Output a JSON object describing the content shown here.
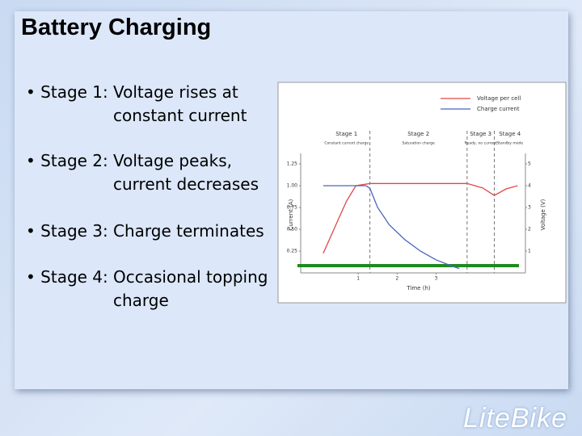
{
  "slide": {
    "title": "Battery Charging",
    "bullets": [
      {
        "label": "• Stage 1:",
        "text": [
          "Voltage rises at",
          "constant current"
        ]
      },
      {
        "label": "• Stage 2:",
        "text": [
          "Voltage peaks,",
          "current decreases"
        ]
      },
      {
        "label": "• Stage 3:",
        "text": [
          "Charge terminates"
        ]
      },
      {
        "label": "• Stage 4:",
        "text": [
          "Occasional topping",
          "charge"
        ]
      }
    ],
    "logo": "LiteBike"
  },
  "chart_data": {
    "type": "line",
    "x_label": "Time (h)",
    "y_label": "Current (A)",
    "y2_label": "Voltage (V)",
    "xlim": [
      -0.48,
      5.3
    ],
    "xticks": [
      1,
      2,
      3
    ],
    "ylim": [
      0,
      1.37
    ],
    "yticks": [
      0.25,
      {
        "value": 0.5,
        "label": "0.50"
      },
      0.75,
      {
        "value": 1,
        "label": "1.00"
      },
      1.25
    ],
    "y2lim": [
      0,
      5.48
    ],
    "y2ticks": [
      1,
      2,
      3,
      4,
      5
    ],
    "stage_boundaries": [
      1.3,
      3.8,
      4.5
    ],
    "stages": [
      {
        "name": "Stage 1",
        "note": "Constant current charge"
      },
      {
        "name": "Stage 2",
        "note": "Saturation charge"
      },
      {
        "name": "Stage 3",
        "note": "Ready, no current"
      },
      {
        "name": "Stage 4",
        "note": "Standby mode"
      }
    ],
    "series": [
      {
        "name": "Voltage per cell",
        "color": "#e04848",
        "axis": "y2",
        "x": [
          0.1,
          0.3,
          0.5,
          0.7,
          0.94,
          1.3,
          2,
          3,
          3.8,
          4.2,
          4.5,
          4.8,
          5.1
        ],
        "values": [
          0.9,
          1.7,
          2.5,
          3.3,
          4.0,
          4.1,
          4.1,
          4.1,
          4.1,
          3.9,
          3.55,
          3.85,
          4.0
        ]
      },
      {
        "name": "Charge current",
        "color": "#4a64c0",
        "x": [
          0.1,
          1.2,
          1.3,
          1.5,
          1.8,
          2.2,
          2.6,
          3,
          3.4,
          3.6
        ],
        "values": [
          1.0,
          1.0,
          0.97,
          0.75,
          0.55,
          0.38,
          0.25,
          0.15,
          0.08,
          0.05
        ]
      }
    ]
  }
}
